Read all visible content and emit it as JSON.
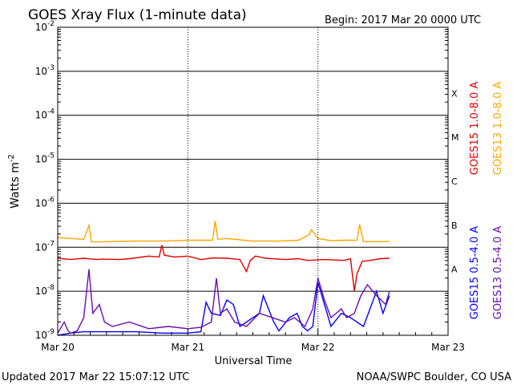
{
  "chart_data": {
    "type": "line",
    "title": "GOES Xray Flux (1-minute data)",
    "begin_label": "Begin:  2017 Mar 20 0000 UTC",
    "ylabel": "Watts m",
    "ylabel_exp": "-2",
    "xlabel": "Universal Time",
    "x_ticks": [
      "Mar 20",
      "Mar 21",
      "Mar 22",
      "Mar 23"
    ],
    "x_range_days": [
      0,
      3
    ],
    "y_scale": "log",
    "y_ticks": [
      {
        "base": "10",
        "exp": "-2"
      },
      {
        "base": "10",
        "exp": "-3"
      },
      {
        "base": "10",
        "exp": "-4"
      },
      {
        "base": "10",
        "exp": "-5"
      },
      {
        "base": "10",
        "exp": "-6"
      },
      {
        "base": "10",
        "exp": "-7"
      },
      {
        "base": "10",
        "exp": "-8"
      },
      {
        "base": "10",
        "exp": "-9"
      }
    ],
    "ylim_exponent": [
      -9,
      -2
    ],
    "flare_classes": [
      "X",
      "M",
      "C",
      "B",
      "A"
    ],
    "series": [
      {
        "name": "GOES15 1.0-8.0 A",
        "color": "#e00000",
        "points": [
          [
            0.0,
            -7.25
          ],
          [
            0.1,
            -7.28
          ],
          [
            0.2,
            -7.25
          ],
          [
            0.3,
            -7.28
          ],
          [
            0.34,
            -7.27
          ],
          [
            0.48,
            -7.28
          ],
          [
            0.55,
            -7.26
          ],
          [
            0.6,
            -7.24
          ],
          [
            0.7,
            -7.2
          ],
          [
            0.78,
            -7.22
          ],
          [
            0.8,
            -6.95
          ],
          [
            0.82,
            -7.18
          ],
          [
            0.9,
            -7.22
          ],
          [
            1.0,
            -7.2
          ],
          [
            1.1,
            -7.28
          ],
          [
            1.2,
            -7.24
          ],
          [
            1.3,
            -7.25
          ],
          [
            1.4,
            -7.28
          ],
          [
            1.45,
            -7.55
          ],
          [
            1.48,
            -7.3
          ],
          [
            1.52,
            -7.2
          ],
          [
            1.6,
            -7.25
          ],
          [
            1.75,
            -7.28
          ],
          [
            1.85,
            -7.26
          ],
          [
            1.92,
            -7.3
          ],
          [
            2.05,
            -7.28
          ],
          [
            2.2,
            -7.3
          ],
          [
            2.25,
            -7.26
          ],
          [
            2.28,
            -8.0
          ],
          [
            2.3,
            -7.6
          ],
          [
            2.34,
            -7.32
          ],
          [
            2.4,
            -7.3
          ],
          [
            2.48,
            -7.26
          ],
          [
            2.55,
            -7.25
          ]
        ]
      },
      {
        "name": "GOES13 1.0-8.0 A",
        "color": "#ffa500",
        "points": [
          [
            0.0,
            -6.78
          ],
          [
            0.1,
            -6.8
          ],
          [
            0.2,
            -6.82
          ],
          [
            0.24,
            -6.5
          ],
          [
            0.26,
            -6.88
          ],
          [
            0.4,
            -6.87
          ],
          [
            0.6,
            -6.86
          ],
          [
            0.8,
            -6.86
          ],
          [
            0.9,
            -6.85
          ],
          [
            1.0,
            -6.84
          ],
          [
            1.1,
            -6.84
          ],
          [
            1.19,
            -6.84
          ],
          [
            1.21,
            -6.4
          ],
          [
            1.23,
            -6.82
          ],
          [
            1.3,
            -6.8
          ],
          [
            1.5,
            -6.86
          ],
          [
            1.7,
            -6.86
          ],
          [
            1.85,
            -6.84
          ],
          [
            1.93,
            -6.72
          ],
          [
            1.95,
            -6.6
          ],
          [
            2.0,
            -6.8
          ],
          [
            2.1,
            -6.85
          ],
          [
            2.2,
            -6.84
          ],
          [
            2.3,
            -6.84
          ],
          [
            2.32,
            -6.48
          ],
          [
            2.35,
            -6.87
          ],
          [
            2.45,
            -6.87
          ],
          [
            2.55,
            -6.87
          ]
        ]
      },
      {
        "name": "GOES15 0.5-4.0 A",
        "color": "#0000ff",
        "points": [
          [
            0.0,
            -9.0
          ],
          [
            0.1,
            -8.95
          ],
          [
            0.2,
            -8.92
          ],
          [
            0.4,
            -8.92
          ],
          [
            0.6,
            -8.92
          ],
          [
            0.8,
            -8.95
          ],
          [
            1.0,
            -8.95
          ],
          [
            1.1,
            -8.92
          ],
          [
            1.14,
            -8.25
          ],
          [
            1.18,
            -8.5
          ],
          [
            1.25,
            -8.55
          ],
          [
            1.3,
            -8.2
          ],
          [
            1.35,
            -8.3
          ],
          [
            1.4,
            -8.8
          ],
          [
            1.5,
            -8.6
          ],
          [
            1.55,
            -8.5
          ],
          [
            1.58,
            -8.1
          ],
          [
            1.62,
            -8.4
          ],
          [
            1.66,
            -8.7
          ],
          [
            1.7,
            -8.9
          ],
          [
            1.78,
            -8.6
          ],
          [
            1.84,
            -8.5
          ],
          [
            1.88,
            -8.8
          ],
          [
            1.92,
            -8.9
          ],
          [
            1.96,
            -8.8
          ],
          [
            2.0,
            -7.8
          ],
          [
            2.05,
            -8.3
          ],
          [
            2.1,
            -8.8
          ],
          [
            2.18,
            -8.5
          ],
          [
            2.25,
            -8.6
          ],
          [
            2.35,
            -8.8
          ],
          [
            2.4,
            -8.4
          ],
          [
            2.45,
            -8.0
          ],
          [
            2.5,
            -8.5
          ],
          [
            2.55,
            -8.1
          ]
        ]
      },
      {
        "name": "GOES13 0.5-4.0 A",
        "color": "#6a0dad",
        "points": [
          [
            0.0,
            -8.95
          ],
          [
            0.05,
            -8.7
          ],
          [
            0.08,
            -8.9
          ],
          [
            0.1,
            -8.95
          ],
          [
            0.15,
            -8.9
          ],
          [
            0.2,
            -8.6
          ],
          [
            0.24,
            -7.5
          ],
          [
            0.27,
            -8.5
          ],
          [
            0.32,
            -8.3
          ],
          [
            0.36,
            -8.7
          ],
          [
            0.42,
            -8.8
          ],
          [
            0.55,
            -8.7
          ],
          [
            0.7,
            -8.85
          ],
          [
            0.85,
            -8.8
          ],
          [
            1.0,
            -8.85
          ],
          [
            1.1,
            -8.82
          ],
          [
            1.18,
            -8.7
          ],
          [
            1.22,
            -7.7
          ],
          [
            1.25,
            -8.5
          ],
          [
            1.3,
            -8.4
          ],
          [
            1.36,
            -8.7
          ],
          [
            1.45,
            -8.8
          ],
          [
            1.55,
            -8.5
          ],
          [
            1.65,
            -8.6
          ],
          [
            1.75,
            -8.7
          ],
          [
            1.82,
            -8.6
          ],
          [
            1.9,
            -8.8
          ],
          [
            1.96,
            -8.4
          ],
          [
            2.0,
            -7.7
          ],
          [
            2.05,
            -8.2
          ],
          [
            2.1,
            -8.6
          ],
          [
            2.18,
            -8.4
          ],
          [
            2.22,
            -8.6
          ],
          [
            2.28,
            -8.5
          ],
          [
            2.33,
            -8.1
          ],
          [
            2.38,
            -7.85
          ],
          [
            2.45,
            -8.1
          ],
          [
            2.52,
            -8.3
          ],
          [
            2.55,
            -8.0
          ]
        ]
      }
    ]
  },
  "footer": {
    "updated": "Updated 2017 Mar 22 15:07:12 UTC",
    "credit": "NOAA/SWPC Boulder, CO USA"
  }
}
